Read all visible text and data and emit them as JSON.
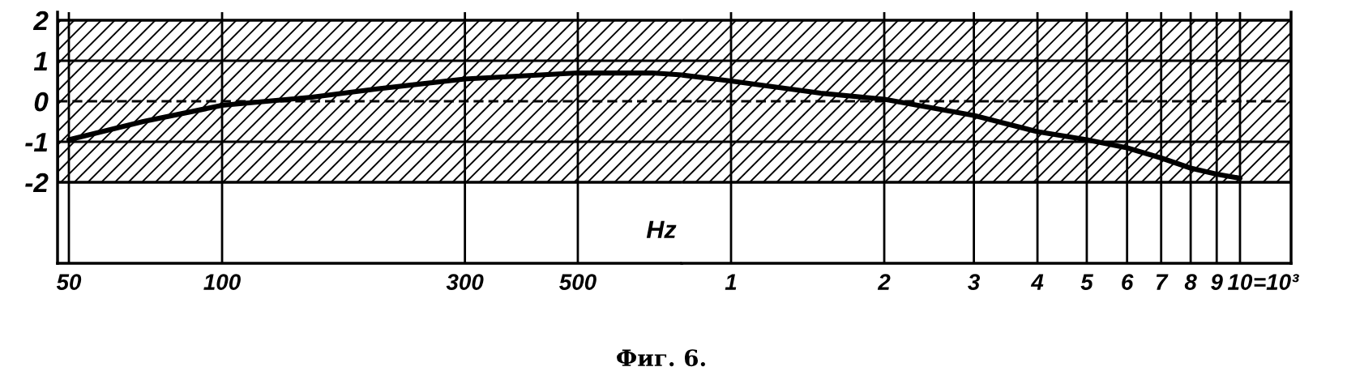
{
  "chart_data": [
    {
      "type": "line",
      "title": "Фиг. 6.",
      "xlabel": "Hz",
      "x": [
        50,
        70,
        100,
        150,
        200,
        300,
        500,
        700,
        800
      ],
      "series": [
        {
          "color": "#000000",
          "values": [
            -0.95,
            -0.5,
            -0.1,
            0.1,
            0.3,
            0.55,
            0.7,
            0.7,
            0.65
          ]
        }
      ],
      "log": "x",
      "xlim": [
        47.5,
        800
      ],
      "ylim": [
        -4,
        2.2
      ],
      "xticks": [
        50,
        100,
        300,
        500
      ],
      "yticks": [
        2,
        1,
        0,
        -1,
        -2
      ],
      "grid": "x",
      "bands": [
        {
          "axis": "y",
          "from": -2,
          "to": 2,
          "color": "#000000"
        }
      ],
      "ref_lines": [
        {
          "axis": "y",
          "value": 1,
          "color": "#000000",
          "line_style": "solid"
        },
        {
          "axis": "y",
          "value": 0,
          "color": "#000000",
          "line_style": "dashed"
        },
        {
          "axis": "y",
          "value": -1,
          "color": "#000000",
          "line_style": "solid"
        }
      ],
      "marker": "none",
      "line_style": "solid"
    },
    {
      "type": "line",
      "xlabel": "=10³",
      "x": [
        0.8,
        1,
        1.5,
        2,
        3,
        4,
        5,
        6,
        7,
        8,
        9,
        10
      ],
      "series": [
        {
          "color": "#000000",
          "values": [
            0.65,
            0.5,
            0.2,
            0.05,
            -0.35,
            -0.75,
            -0.95,
            -1.15,
            -1.4,
            -1.65,
            -1.8,
            -1.9
          ]
        }
      ],
      "log": "x",
      "xlim": [
        0.8,
        12.6
      ],
      "ylim": [
        -4,
        2.2
      ],
      "xticks": [
        1,
        2,
        3,
        4,
        5,
        6,
        7,
        8,
        9,
        10
      ],
      "tick_labels": "x",
      "grid": "x",
      "bands": [
        {
          "axis": "y",
          "from": -2,
          "to": 2,
          "color": "#000000"
        }
      ],
      "ref_lines": [
        {
          "axis": "y",
          "value": 1,
          "color": "#000000",
          "line_style": "solid"
        },
        {
          "axis": "y",
          "value": 0,
          "color": "#000000",
          "line_style": "dashed"
        },
        {
          "axis": "y",
          "value": -1,
          "color": "#000000",
          "line_style": "solid"
        }
      ],
      "marker": "none",
      "line_style": "solid"
    }
  ]
}
